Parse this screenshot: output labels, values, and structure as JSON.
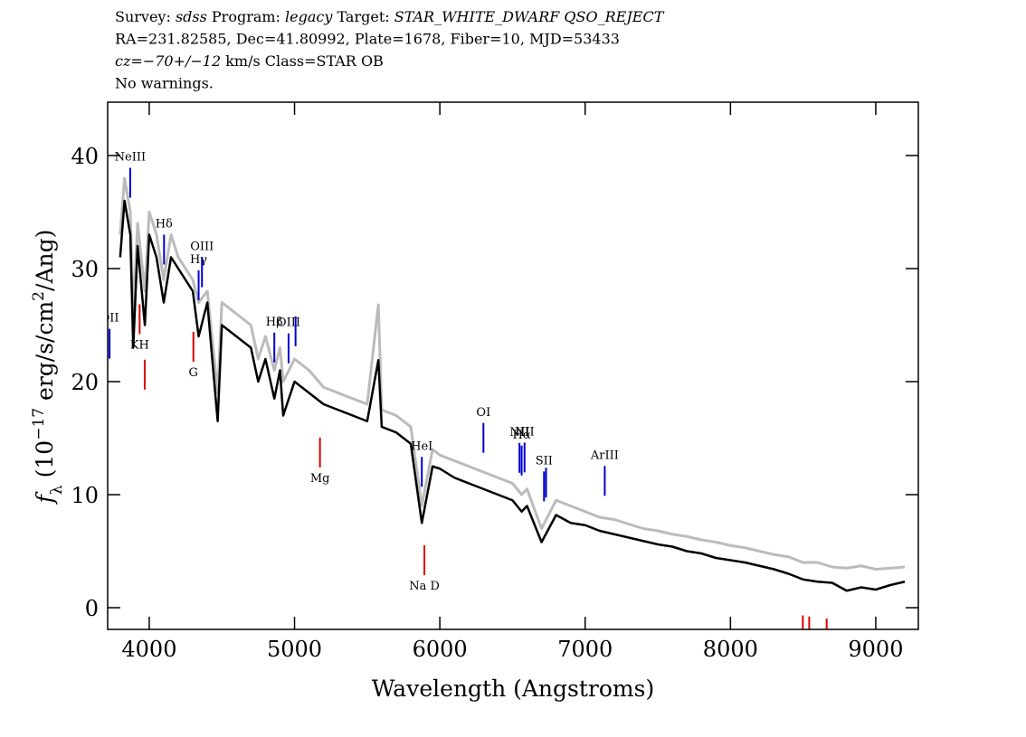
{
  "chart_data": {
    "type": "line",
    "title_lines": [
      [
        {
          "text": "Survey: "
        },
        {
          "text": "sdss",
          "italic": true
        },
        {
          "text": " Program: "
        },
        {
          "text": "legacy",
          "italic": true
        },
        {
          "text": " Target: "
        },
        {
          "text": "STAR_WHITE_DWARF QSO_REJECT",
          "italic": true
        }
      ],
      [
        {
          "text": "RA=231.82585, Dec=41.80992, Plate=1678, Fiber=10, MJD=53433"
        }
      ],
      [
        {
          "text": "cz=−70+/−12",
          "italic": true
        },
        {
          "text": " km/s Class=STAR OB"
        }
      ],
      [
        {
          "text": "No warnings."
        }
      ]
    ],
    "x_label": "Wavelength (Angstroms)",
    "y_label": [
      {
        "text": "f",
        "italic": true
      },
      {
        "text": "λ",
        "sub": true
      },
      {
        "text": " (10"
      },
      {
        "text": "−17",
        "sup": true
      },
      {
        "text": " erg/s/cm"
      },
      {
        "text": "2",
        "sup": true
      },
      {
        "text": "/Ang)"
      }
    ],
    "xlim": [
      3714,
      9293
    ],
    "ylim": [
      -1.92,
      44.72
    ],
    "xticks": [
      4000,
      5000,
      6000,
      7000,
      8000,
      9000
    ],
    "yticks": [
      0,
      10,
      20,
      30,
      40
    ],
    "x": [
      3800,
      3830,
      3870,
      3890,
      3920,
      3970,
      4000,
      4050,
      4100,
      4150,
      4200,
      4300,
      4340,
      4400,
      4471,
      4500,
      4600,
      4700,
      4750,
      4800,
      4861,
      4900,
      4922,
      5000,
      5100,
      5200,
      5300,
      5400,
      5500,
      5577,
      5600,
      5700,
      5800,
      5876,
      5950,
      6000,
      6100,
      6200,
      6300,
      6400,
      6500,
      6563,
      6600,
      6700,
      6800,
      6900,
      7000,
      7100,
      7200,
      7300,
      7400,
      7500,
      7600,
      7700,
      7800,
      7900,
      8000,
      8100,
      8200,
      8300,
      8400,
      8500,
      8600,
      8700,
      8800,
      8900,
      9000,
      9100,
      9200
    ],
    "series": [
      {
        "color": "#bbbbbb",
        "values": [
          33,
          38,
          35,
          26,
          34,
          28,
          35,
          33,
          29,
          33,
          31,
          29,
          27,
          28,
          19,
          27,
          26,
          25,
          22,
          24,
          21,
          23,
          20,
          22,
          21,
          19.5,
          19,
          18.5,
          18,
          26.8,
          17.5,
          17,
          16,
          9,
          14,
          13.5,
          13,
          12.5,
          12,
          11.5,
          11,
          10,
          10.5,
          7,
          9.5,
          9,
          8.5,
          8,
          7.8,
          7.4,
          7,
          6.8,
          6.5,
          6.3,
          6,
          5.8,
          5.5,
          5.3,
          5,
          4.7,
          4.5,
          4,
          4,
          3.6,
          3.5,
          3.7,
          3.4,
          3.5,
          3.6
        ]
      },
      {
        "color": "#000000",
        "values": [
          31,
          36,
          33,
          23,
          32,
          25,
          33,
          31,
          27,
          31,
          30,
          28,
          24,
          27,
          16.5,
          25,
          24,
          23,
          20,
          22,
          18.5,
          21,
          17,
          20,
          19,
          18,
          17.5,
          17,
          16.5,
          21.9,
          16,
          15.5,
          14.5,
          7.5,
          12.5,
          12.3,
          11.5,
          11,
          10.5,
          10,
          9.5,
          8.5,
          9,
          5.8,
          8.2,
          7.5,
          7.3,
          6.8,
          6.5,
          6.2,
          5.9,
          5.6,
          5.4,
          5.0,
          4.8,
          4.4,
          4.2,
          4.0,
          3.7,
          3.4,
          3.0,
          2.5,
          2.3,
          2.2,
          1.5,
          1.8,
          1.6,
          2.0,
          2.3
        ]
      }
    ],
    "emission_lines": {
      "color": "#0000cc",
      "lines": [
        {
          "label": "OII",
          "wavelength": 3727
        },
        {
          "label": "NeIII",
          "wavelength": 3869
        },
        {
          "label": "Hδ",
          "wavelength": 4102
        },
        {
          "label": "Hγ",
          "wavelength": 4340
        },
        {
          "label": "OIII",
          "wavelength": 4363
        },
        {
          "label": "Hβ",
          "wavelength": 4861
        },
        {
          "label": "OIII",
          "wavelength": 4959
        },
        {
          "label": null,
          "wavelength": 5007
        },
        {
          "label": "HeI",
          "wavelength": 5876
        },
        {
          "label": "OI",
          "wavelength": 6300
        },
        {
          "label": "NII",
          "wavelength": 6548
        },
        {
          "label": "Hα",
          "wavelength": 6563
        },
        {
          "label": "NII",
          "wavelength": 6583
        },
        {
          "label": "SII",
          "wavelength": 6717
        },
        {
          "label": null,
          "wavelength": 6731
        },
        {
          "label": "ArIII",
          "wavelength": 7135
        }
      ]
    },
    "absorption_lines": {
      "color": "#dd0000",
      "lines": [
        {
          "label": "KH",
          "wavelength": 3934
        },
        {
          "label": null,
          "wavelength": 3969
        },
        {
          "label": "G",
          "wavelength": 4304
        },
        {
          "label": "Mg",
          "wavelength": 5175
        },
        {
          "label": "Na D",
          "wavelength": 5894
        },
        {
          "label": null,
          "wavelength": 8498
        },
        {
          "label": null,
          "wavelength": 8542
        },
        {
          "label": null,
          "wavelength": 8662
        }
      ]
    }
  }
}
